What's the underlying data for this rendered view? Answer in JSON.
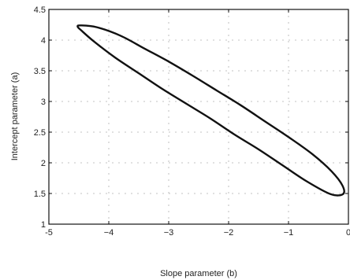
{
  "chart_data": {
    "type": "line",
    "title": "",
    "xlabel": "Slope parameter (b)",
    "ylabel": "Intercept parameter (a)",
    "xlim": [
      -5,
      0
    ],
    "ylim": [
      1,
      4.5
    ],
    "x_ticks": [
      -5,
      -4,
      -3,
      -2,
      -1,
      0
    ],
    "x_tick_labels": [
      "-5",
      "−4",
      "−3",
      "−2",
      "−1",
      "0"
    ],
    "y_ticks": [
      1,
      1.5,
      2,
      2.5,
      3,
      3.5,
      4,
      4.5
    ],
    "y_tick_labels": [
      "1",
      "1.5",
      "2",
      "2.5",
      "3",
      "3.5",
      "4",
      "4.5"
    ],
    "grid": true,
    "series": [
      {
        "shape": "ellipse",
        "x": [
          -4.47,
          -4.2,
          -3.8,
          -3.4,
          -3.0,
          -2.6,
          -2.2,
          -1.8,
          -1.4,
          -1.0,
          -0.6,
          -0.28,
          -0.1,
          -0.09,
          -0.3,
          -0.7,
          -1.1,
          -1.5,
          -1.9,
          -2.3,
          -2.7,
          -3.1,
          -3.5,
          -3.9,
          -4.25,
          -4.45,
          -4.52,
          -4.47
        ],
        "y": [
          4.24,
          4.21,
          4.07,
          3.86,
          3.65,
          3.42,
          3.18,
          2.94,
          2.68,
          2.42,
          2.14,
          1.86,
          1.63,
          1.49,
          1.49,
          1.7,
          1.96,
          2.22,
          2.46,
          2.72,
          2.96,
          3.2,
          3.46,
          3.72,
          3.98,
          4.15,
          4.22,
          4.24
        ]
      }
    ]
  }
}
